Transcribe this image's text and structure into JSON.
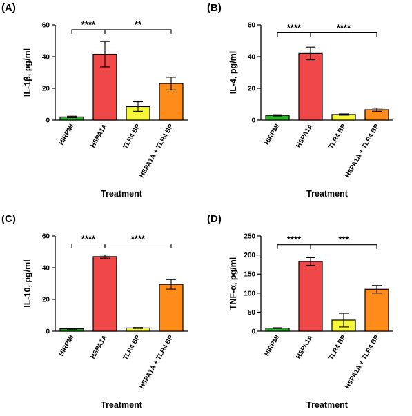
{
  "chart_data": [
    {
      "panel_label": "(A)",
      "type": "bar",
      "ylabel": "IL-1β, pg/ml",
      "xlabel": "Treatment",
      "ylim": [
        0,
        60
      ],
      "yticks": [
        0,
        20,
        40,
        60
      ],
      "categories": [
        "HIRPMI",
        "HSPA1A",
        "TLR4 BP",
        "HSPA1A + TLR4 BP"
      ],
      "values": [
        2,
        41.5,
        8.5,
        23
      ],
      "errors": [
        0.5,
        8,
        3,
        4
      ],
      "colors": [
        "#2bb32b",
        "#f04848",
        "#f5f53a",
        "#ff8c1a"
      ],
      "significance": [
        {
          "from": 0,
          "to": 1,
          "label": "****",
          "level": 57
        },
        {
          "from": 1,
          "to": 3,
          "label": "**",
          "level": 57
        }
      ]
    },
    {
      "panel_label": "(B)",
      "type": "bar",
      "ylabel": "IL-4, pg/ml",
      "xlabel": "Treatment",
      "ylim": [
        0,
        60
      ],
      "yticks": [
        0,
        20,
        40,
        60
      ],
      "categories": [
        "HIRPMI",
        "HSPA1A",
        "TLR4 BP",
        "HSPA1A + TLR4 BP"
      ],
      "values": [
        3,
        42,
        3.5,
        6.5
      ],
      "errors": [
        0.4,
        4,
        0.4,
        1
      ],
      "colors": [
        "#2bb32b",
        "#f04848",
        "#f5f53a",
        "#ff8c1a"
      ],
      "significance": [
        {
          "from": 0,
          "to": 1,
          "label": "****",
          "level": 55
        },
        {
          "from": 1,
          "to": 3,
          "label": "****",
          "level": 55
        }
      ]
    },
    {
      "panel_label": "(C)",
      "type": "bar",
      "ylabel": "IL-10, pg/ml",
      "xlabel": "Treatment",
      "ylim": [
        0,
        60
      ],
      "yticks": [
        0,
        20,
        40,
        60
      ],
      "categories": [
        "HIRPMI",
        "HSPA1A",
        "TLR4 BP",
        "HSPA1A + TLR4 BP"
      ],
      "values": [
        1.5,
        47,
        2,
        29.5
      ],
      "errors": [
        0.3,
        1,
        0.3,
        3
      ],
      "colors": [
        "#2bb32b",
        "#f04848",
        "#f5f53a",
        "#ff8c1a"
      ],
      "significance": [
        {
          "from": 0,
          "to": 1,
          "label": "****",
          "level": 55
        },
        {
          "from": 1,
          "to": 3,
          "label": "****",
          "level": 55
        }
      ]
    },
    {
      "panel_label": "(D)",
      "type": "bar",
      "ylabel": "TNF-α, pg/ml",
      "xlabel": "Treatment",
      "ylim": [
        0,
        250
      ],
      "yticks": [
        0,
        50,
        100,
        150,
        200,
        250
      ],
      "categories": [
        "HIRPMI",
        "HSPA1A",
        "TLR4 BP",
        "HSPA1A + TLR4 BP"
      ],
      "values": [
        8,
        183,
        29,
        110
      ],
      "errors": [
        1,
        10,
        18,
        10
      ],
      "colors": [
        "#2bb32b",
        "#f04848",
        "#f5f53a",
        "#ff8c1a"
      ],
      "significance": [
        {
          "from": 0,
          "to": 1,
          "label": "****",
          "level": 227
        },
        {
          "from": 1,
          "to": 3,
          "label": "***",
          "level": 227
        }
      ]
    }
  ]
}
